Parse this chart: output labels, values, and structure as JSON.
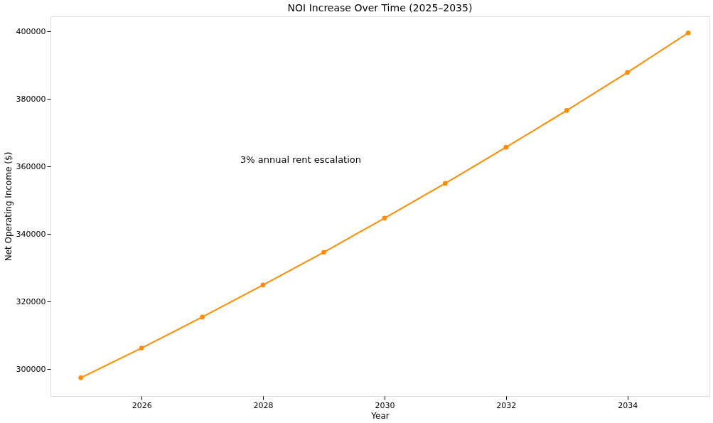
{
  "chart_data": {
    "type": "line",
    "title": "NOI Increase Over Time (2025–2035)",
    "xlabel": "Year",
    "ylabel": "Net Operating Income ($)",
    "x": [
      2025,
      2026,
      2027,
      2028,
      2029,
      2030,
      2031,
      2032,
      2033,
      2034,
      2035
    ],
    "series": [
      {
        "color": "#ff8c00",
        "values": [
          297400,
          306200,
          315400,
          324900,
          334600,
          344700,
          355000,
          365700,
          376600,
          387900,
          399600
        ]
      }
    ],
    "xlim": [
      2024.5,
      2035.35
    ],
    "xticks": [
      2026,
      2028,
      2030,
      2032,
      2034
    ],
    "ylim": [
      292000,
      404500
    ],
    "yticks": [
      300000,
      320000,
      340000,
      360000,
      380000,
      400000
    ],
    "annotations": [
      "3% annual rent escalation"
    ],
    "marker": "circle",
    "line_style": "solid",
    "grid": false
  }
}
